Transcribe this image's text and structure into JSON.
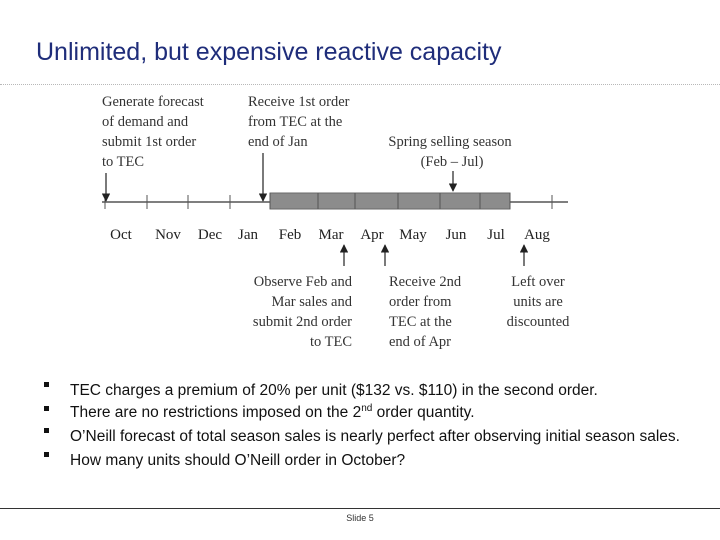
{
  "title": "Unlimited, but expensive reactive capacity",
  "timeline": {
    "months": [
      "Oct",
      "Nov",
      "Dec",
      "Jan",
      "Feb",
      "Mar",
      "Apr",
      "May",
      "Jun",
      "Jul",
      "Aug"
    ],
    "top_annotations": [
      {
        "lines": [
          "Generate forecast",
          "of demand and",
          "submit 1st order",
          "to TEC"
        ]
      },
      {
        "lines": [
          "Receive 1st order",
          "from TEC at the",
          "end of Jan"
        ]
      },
      {
        "lines": [
          "Spring selling season",
          "(Feb – Jul)"
        ]
      }
    ],
    "bottom_annotations": [
      {
        "lines": [
          "Observe Feb and",
          "Mar sales and",
          "submit 2nd order",
          "to TEC"
        ]
      },
      {
        "lines": [
          "Receive 2nd",
          "order from",
          "TEC at the",
          "end of Apr"
        ]
      },
      {
        "lines": [
          "Left over",
          "units are",
          "discounted"
        ]
      }
    ]
  },
  "bullets": [
    {
      "pre": "TEC charges a premium of 20% per unit ($132 vs. $110) in the second order.",
      "sup": "",
      "post": ""
    },
    {
      "pre": "There are no restrictions imposed on the 2",
      "sup": "nd",
      "post": " order quantity."
    },
    {
      "pre": "O’Neill forecast of total season sales is nearly perfect after observing initial season sales.",
      "sup": "",
      "post": ""
    },
    {
      "pre": "How many units should O’Neill order in October?",
      "sup": "",
      "post": ""
    }
  ],
  "footer": {
    "slide": "Slide 5"
  }
}
